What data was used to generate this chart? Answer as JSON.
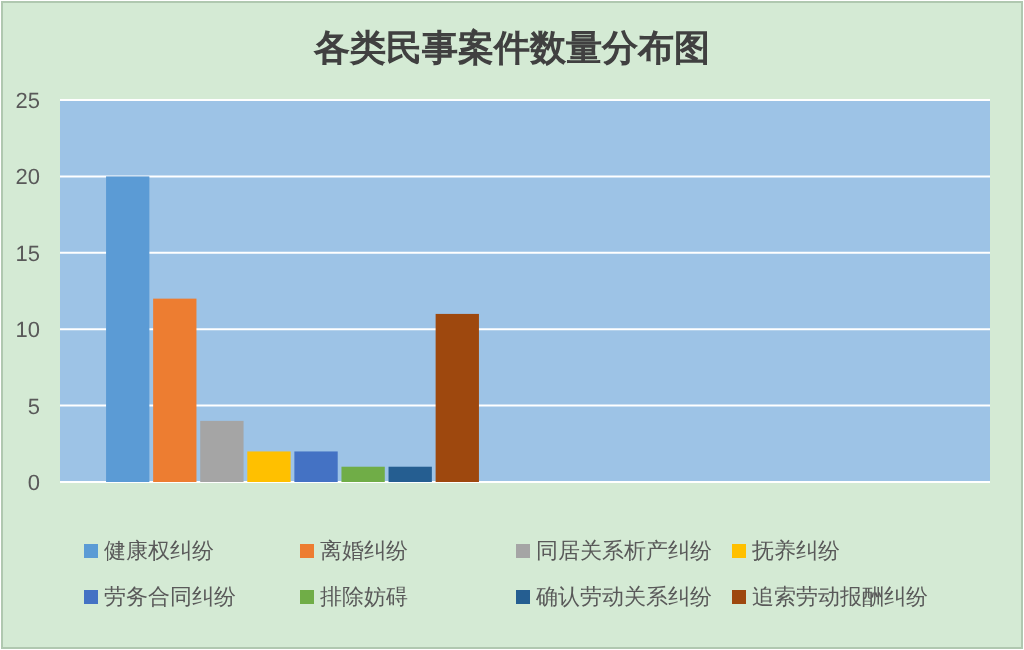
{
  "chart_data": {
    "type": "bar",
    "title": "各类民事案件数量分布图",
    "categories": [
      null,
      null
    ],
    "series": [
      {
        "name": "健康权纠纷",
        "color": "#5b9bd5",
        "values": [
          20,
          null
        ]
      },
      {
        "name": "离婚纠纷",
        "color": "#ed7d31",
        "values": [
          12,
          null
        ]
      },
      {
        "name": "同居关系析产纠纷",
        "color": "#a5a5a5",
        "values": [
          4,
          null
        ]
      },
      {
        "name": "抚养纠纷",
        "color": "#ffc000",
        "values": [
          2,
          null
        ]
      },
      {
        "name": "劳务合同纠纷",
        "color": "#4472c4",
        "values": [
          2,
          null
        ]
      },
      {
        "name": "排除妨碍",
        "color": "#70ad47",
        "values": [
          1,
          null
        ]
      },
      {
        "name": "确认劳动关系纠纷",
        "color": "#255e91",
        "values": [
          1,
          null
        ]
      },
      {
        "name": "追索劳动报酬纠纷",
        "color": "#9e480e",
        "values": [
          11,
          null
        ]
      }
    ],
    "ylim": [
      0,
      25
    ],
    "yticks": [
      0,
      5,
      10,
      15,
      20,
      25
    ],
    "grid": "y",
    "legend": "bottom"
  }
}
